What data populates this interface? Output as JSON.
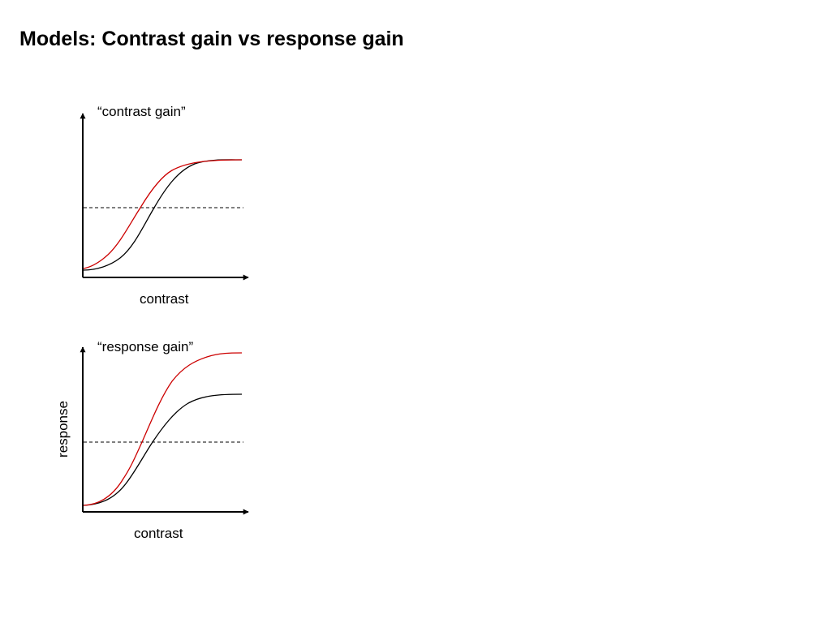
{
  "slide": {
    "title": "Models: Contrast gain vs response gain"
  },
  "panels": [
    {
      "title": "“contrast gain”",
      "xlabel": "contrast",
      "ylabel": ""
    },
    {
      "title": "“response gain”",
      "xlabel": "contrast",
      "ylabel": "response"
    }
  ],
  "colors": {
    "baseline_curve": "#000000",
    "modulated_curve": "#cc0000",
    "reference_line": "#000000"
  }
}
